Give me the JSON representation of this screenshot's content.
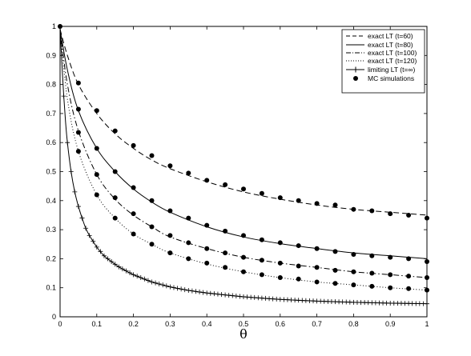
{
  "chart_data": {
    "type": "line",
    "title": "",
    "xlabel": "θ",
    "ylabel": "",
    "xlim": [
      0,
      1
    ],
    "ylim": [
      0,
      1
    ],
    "x_ticks": [
      "0",
      "0.1",
      "0.2",
      "0.3",
      "0.4",
      "0.5",
      "0.6",
      "0.7",
      "0.8",
      "0.9",
      "1"
    ],
    "y_ticks": [
      "0",
      "0.1",
      "0.2",
      "0.3",
      "0.4",
      "0.5",
      "0.6",
      "0.7",
      "0.8",
      "0.9",
      "1"
    ],
    "grid": false,
    "legend_position": "top-right",
    "series": [
      {
        "name": "exact LT (t=60)",
        "style": "dashed",
        "x": [
          0,
          0.02,
          0.05,
          0.1,
          0.15,
          0.2,
          0.25,
          0.3,
          0.4,
          0.5,
          0.6,
          0.7,
          0.8,
          0.9,
          1.0
        ],
        "y": [
          0.99,
          0.9,
          0.8,
          0.7,
          0.63,
          0.58,
          0.54,
          0.51,
          0.465,
          0.43,
          0.405,
          0.385,
          0.37,
          0.36,
          0.35
        ]
      },
      {
        "name": "exact LT (t=80)",
        "style": "solid",
        "x": [
          0,
          0.02,
          0.05,
          0.1,
          0.15,
          0.2,
          0.25,
          0.3,
          0.4,
          0.5,
          0.6,
          0.7,
          0.8,
          0.9,
          1.0
        ],
        "y": [
          0.99,
          0.85,
          0.71,
          0.58,
          0.5,
          0.44,
          0.395,
          0.36,
          0.31,
          0.275,
          0.252,
          0.235,
          0.22,
          0.21,
          0.2
        ]
      },
      {
        "name": "exact LT (t=100)",
        "style": "dashdot",
        "x": [
          0,
          0.02,
          0.05,
          0.1,
          0.15,
          0.2,
          0.25,
          0.3,
          0.4,
          0.5,
          0.6,
          0.7,
          0.8,
          0.9,
          1.0
        ],
        "y": [
          0.99,
          0.8,
          0.64,
          0.49,
          0.405,
          0.35,
          0.31,
          0.275,
          0.235,
          0.205,
          0.185,
          0.17,
          0.155,
          0.145,
          0.135
        ]
      },
      {
        "name": "exact LT (t=120)",
        "style": "dotted",
        "x": [
          0,
          0.02,
          0.05,
          0.1,
          0.15,
          0.2,
          0.25,
          0.3,
          0.4,
          0.5,
          0.6,
          0.7,
          0.8,
          0.9,
          1.0
        ],
        "y": [
          0.99,
          0.75,
          0.57,
          0.42,
          0.34,
          0.285,
          0.25,
          0.22,
          0.182,
          0.155,
          0.135,
          0.12,
          0.11,
          0.1,
          0.092
        ]
      },
      {
        "name": "limiting LT (t=∞)",
        "style": "solid-plus",
        "x": [
          0,
          0.005,
          0.01,
          0.015,
          0.02,
          0.03,
          0.04,
          0.05,
          0.06,
          0.07,
          0.08,
          0.09,
          0.1,
          0.12,
          0.14,
          0.16,
          0.18,
          0.2,
          0.25,
          0.3,
          0.35,
          0.4,
          0.5,
          0.6,
          0.7,
          0.8,
          0.9,
          1.0
        ],
        "y": [
          1.0,
          0.87,
          0.76,
          0.67,
          0.6,
          0.5,
          0.43,
          0.38,
          0.34,
          0.305,
          0.28,
          0.26,
          0.24,
          0.21,
          0.19,
          0.172,
          0.158,
          0.145,
          0.12,
          0.103,
          0.091,
          0.082,
          0.069,
          0.06,
          0.054,
          0.05,
          0.047,
          0.045
        ]
      },
      {
        "name": "MC simulations",
        "style": "markers",
        "points": [
          [
            0,
            1.0
          ],
          [
            0.05,
            0.805
          ],
          [
            0.1,
            0.71
          ],
          [
            0.15,
            0.64
          ],
          [
            0.2,
            0.59
          ],
          [
            0.25,
            0.555
          ],
          [
            0.3,
            0.52
          ],
          [
            0.35,
            0.495
          ],
          [
            0.4,
            0.47
          ],
          [
            0.45,
            0.455
          ],
          [
            0.5,
            0.44
          ],
          [
            0.55,
            0.425
          ],
          [
            0.6,
            0.41
          ],
          [
            0.65,
            0.4
          ],
          [
            0.7,
            0.39
          ],
          [
            0.75,
            0.385
          ],
          [
            0.8,
            0.37
          ],
          [
            0.85,
            0.365
          ],
          [
            0.9,
            0.355
          ],
          [
            0.95,
            0.35
          ],
          [
            1.0,
            0.34
          ],
          [
            0.05,
            0.715
          ],
          [
            0.1,
            0.58
          ],
          [
            0.15,
            0.5
          ],
          [
            0.2,
            0.445
          ],
          [
            0.25,
            0.4
          ],
          [
            0.3,
            0.365
          ],
          [
            0.35,
            0.34
          ],
          [
            0.4,
            0.315
          ],
          [
            0.45,
            0.295
          ],
          [
            0.5,
            0.28
          ],
          [
            0.55,
            0.265
          ],
          [
            0.6,
            0.255
          ],
          [
            0.65,
            0.245
          ],
          [
            0.7,
            0.235
          ],
          [
            0.75,
            0.225
          ],
          [
            0.8,
            0.215
          ],
          [
            0.85,
            0.21
          ],
          [
            0.9,
            0.205
          ],
          [
            0.95,
            0.2
          ],
          [
            1.0,
            0.19
          ],
          [
            0.05,
            0.635
          ],
          [
            0.1,
            0.49
          ],
          [
            0.15,
            0.41
          ],
          [
            0.2,
            0.355
          ],
          [
            0.25,
            0.31
          ],
          [
            0.3,
            0.28
          ],
          [
            0.35,
            0.255
          ],
          [
            0.4,
            0.235
          ],
          [
            0.45,
            0.22
          ],
          [
            0.5,
            0.205
          ],
          [
            0.55,
            0.195
          ],
          [
            0.6,
            0.185
          ],
          [
            0.65,
            0.175
          ],
          [
            0.7,
            0.17
          ],
          [
            0.75,
            0.16
          ],
          [
            0.8,
            0.155
          ],
          [
            0.85,
            0.15
          ],
          [
            0.9,
            0.145
          ],
          [
            0.95,
            0.14
          ],
          [
            1.0,
            0.135
          ],
          [
            0.05,
            0.57
          ],
          [
            0.1,
            0.42
          ],
          [
            0.15,
            0.34
          ],
          [
            0.2,
            0.285
          ],
          [
            0.25,
            0.25
          ],
          [
            0.3,
            0.22
          ],
          [
            0.35,
            0.2
          ],
          [
            0.4,
            0.185
          ],
          [
            0.45,
            0.17
          ],
          [
            0.5,
            0.155
          ],
          [
            0.55,
            0.145
          ],
          [
            0.6,
            0.135
          ],
          [
            0.65,
            0.13
          ],
          [
            0.7,
            0.12
          ],
          [
            0.75,
            0.115
          ],
          [
            0.8,
            0.11
          ],
          [
            0.85,
            0.105
          ],
          [
            0.9,
            0.1
          ],
          [
            0.95,
            0.097
          ],
          [
            1.0,
            0.092
          ]
        ]
      }
    ]
  }
}
